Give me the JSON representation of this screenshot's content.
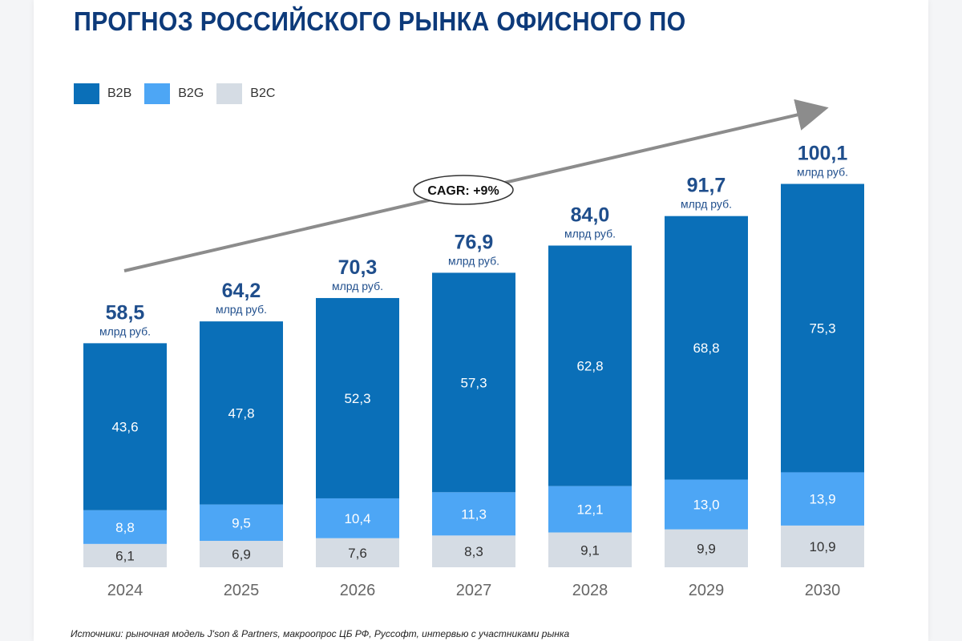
{
  "title": "ПРОГНОЗ РОССИЙСКОГО РЫНКА ОФИСНОГО ПО",
  "source": "Источники: рыночная модель J'son & Partners, макроопрос ЦБ РФ, Руссофт, интервью с участниками рынка",
  "chart_data": {
    "type": "bar",
    "stacked": true,
    "title": "ПРОГНОЗ РОССИЙСКОГО РЫНКА ОФИСНОГО ПО",
    "categories": [
      "2024",
      "2025",
      "2026",
      "2027",
      "2028",
      "2029",
      "2030"
    ],
    "series": [
      {
        "name": "B2C",
        "color": "#d5dce4",
        "values": [
          6.1,
          6.9,
          7.6,
          8.3,
          9.1,
          9.9,
          10.9
        ],
        "labels": [
          "6,1",
          "6,9",
          "7,6",
          "8,3",
          "9,1",
          "9,9",
          "10,9"
        ]
      },
      {
        "name": "B2G",
        "color": "#4da6f5",
        "values": [
          8.8,
          9.5,
          10.4,
          11.3,
          12.1,
          13.0,
          13.9
        ],
        "labels": [
          "8,8",
          "9,5",
          "10,4",
          "11,3",
          "12,1",
          "13,0",
          "13,9"
        ]
      },
      {
        "name": "B2B",
        "color": "#0a6fb8",
        "values": [
          43.6,
          47.8,
          52.3,
          57.3,
          62.8,
          68.8,
          75.3
        ],
        "labels": [
          "43,6",
          "47,8",
          "52,3",
          "57,3",
          "62,8",
          "68,8",
          "75,3"
        ]
      }
    ],
    "legend_order": [
      "B2B",
      "B2G",
      "B2C"
    ],
    "totals": [
      58.5,
      64.2,
      70.3,
      76.9,
      84.0,
      91.7,
      100.1
    ],
    "total_labels": [
      "58,5",
      "64,2",
      "70,3",
      "76,9",
      "84,0",
      "91,7",
      "100,1"
    ],
    "unit": "млрд руб.",
    "annotation": "CAGR: +9%",
    "legend_position": "top-left",
    "grid": false,
    "ylim": [
      0,
      100.1
    ]
  }
}
